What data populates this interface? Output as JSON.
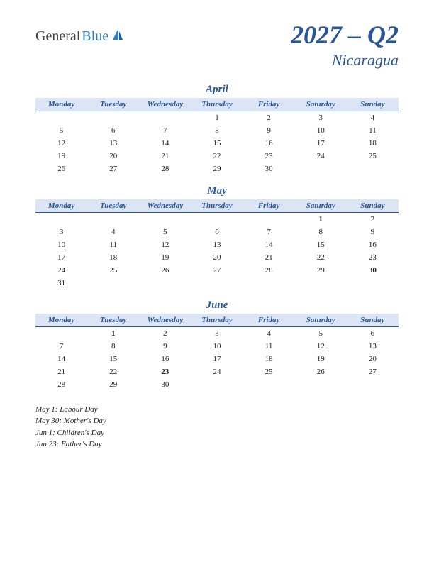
{
  "logo": {
    "text1": "General",
    "text2": "Blue"
  },
  "title": {
    "main": "2027 – Q2",
    "sub": "Nicaragua"
  },
  "day_headers": [
    "Monday",
    "Tuesday",
    "Wednesday",
    "Thursday",
    "Friday",
    "Saturday",
    "Sunday"
  ],
  "colors": {
    "accent": "#2a5599",
    "header_bg": "#dbe5f4",
    "holiday": "#c00000",
    "logo_blue": "#2a7fd4"
  },
  "months": [
    {
      "name": "April",
      "weeks": [
        [
          "",
          "",
          "",
          "1",
          "2",
          "3",
          "4"
        ],
        [
          "5",
          "6",
          "7",
          "8",
          "9",
          "10",
          "11"
        ],
        [
          "12",
          "13",
          "14",
          "15",
          "16",
          "17",
          "18"
        ],
        [
          "19",
          "20",
          "21",
          "22",
          "23",
          "24",
          "25"
        ],
        [
          "26",
          "27",
          "28",
          "29",
          "30",
          "",
          ""
        ]
      ],
      "holidays": []
    },
    {
      "name": "May",
      "weeks": [
        [
          "",
          "",
          "",
          "",
          "",
          "1",
          "2"
        ],
        [
          "3",
          "4",
          "5",
          "6",
          "7",
          "8",
          "9"
        ],
        [
          "10",
          "11",
          "12",
          "13",
          "14",
          "15",
          "16"
        ],
        [
          "17",
          "18",
          "19",
          "20",
          "21",
          "22",
          "23"
        ],
        [
          "24",
          "25",
          "26",
          "27",
          "28",
          "29",
          "30"
        ],
        [
          "31",
          "",
          "",
          "",
          "",
          "",
          ""
        ]
      ],
      "holidays": [
        "1",
        "30"
      ]
    },
    {
      "name": "June",
      "weeks": [
        [
          "",
          "1",
          "2",
          "3",
          "4",
          "5",
          "6"
        ],
        [
          "7",
          "8",
          "9",
          "10",
          "11",
          "12",
          "13"
        ],
        [
          "14",
          "15",
          "16",
          "17",
          "18",
          "19",
          "20"
        ],
        [
          "21",
          "22",
          "23",
          "24",
          "25",
          "26",
          "27"
        ],
        [
          "28",
          "29",
          "30",
          "",
          "",
          "",
          ""
        ]
      ],
      "holidays": [
        "1",
        "23"
      ]
    }
  ],
  "holiday_list": [
    "May 1: Labour Day",
    "May 30: Mother's Day",
    "Jun 1: Children's Day",
    "Jun 23: Father's Day"
  ]
}
